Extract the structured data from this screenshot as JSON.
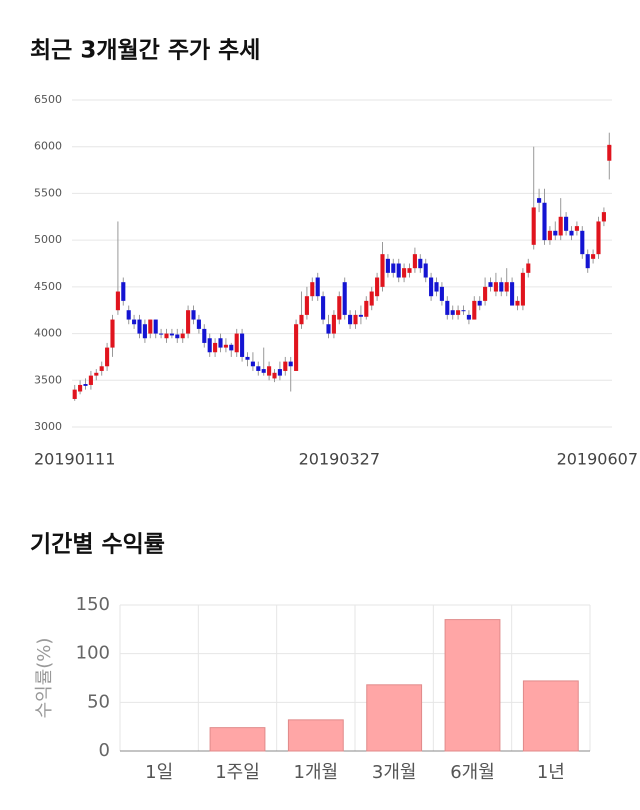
{
  "chart_data": [
    {
      "type": "candlestick",
      "title": "최근 3개월간 주가 추세",
      "categories": [
        "20190111",
        null,
        null,
        null,
        null,
        null,
        null,
        null,
        null,
        null,
        null,
        null,
        null,
        null,
        null,
        null,
        null,
        null,
        null,
        null,
        null,
        null,
        null,
        null,
        null,
        null,
        null,
        null,
        null,
        null,
        null,
        null,
        null,
        null,
        null,
        null,
        null,
        null,
        null,
        null,
        null,
        null,
        null,
        null,
        null,
        null,
        null,
        null,
        null,
        "20190327",
        null,
        null,
        null,
        null,
        null,
        null,
        null,
        null,
        null,
        null,
        null,
        null,
        null,
        null,
        null,
        null,
        null,
        null,
        null,
        null,
        null,
        null,
        null,
        null,
        null,
        null,
        null,
        null,
        null,
        null,
        null,
        null,
        null,
        null,
        null,
        null,
        null,
        null,
        null,
        null,
        null,
        null,
        null,
        null,
        null,
        null,
        null,
        null,
        null,
        "20190607"
      ],
      "open": [
        3300,
        3380,
        3460,
        3450,
        3550,
        3600,
        3650,
        3850,
        4250,
        4550,
        4250,
        4150,
        4150,
        4100,
        4000,
        4150,
        4000,
        3950,
        4000,
        3990,
        3950,
        4000,
        4250,
        4150,
        4050,
        3950,
        3800,
        3950,
        3850,
        3880,
        3800,
        4000,
        3750,
        3700,
        3650,
        3620,
        3550,
        3520,
        3620,
        3600,
        3700,
        3600,
        4100,
        4200,
        4400,
        4600,
        4400,
        4100,
        4000,
        4150,
        4550,
        4200,
        4100,
        4200,
        4180,
        4300,
        4400,
        4500,
        4800,
        4750,
        4750,
        4600,
        4650,
        4700,
        4800,
        4750,
        4600,
        4550,
        4500,
        4350,
        4250,
        4200,
        4250,
        4200,
        4150,
        4350,
        4350,
        4550,
        4450,
        4550,
        4450,
        4550,
        4300,
        4300,
        4650,
        4950,
        5450,
        5400,
        5000,
        5100,
        5050,
        5250,
        5100,
        5100,
        5100,
        4850,
        4800,
        4850,
        5200,
        5850
      ],
      "high": [
        3450,
        3500,
        3520,
        3600,
        3620,
        3700,
        3900,
        4200,
        5200,
        4600,
        4300,
        4200,
        4200,
        4150,
        4150,
        4150,
        4050,
        4050,
        4050,
        4050,
        4050,
        4300,
        4300,
        4200,
        4100,
        4000,
        3950,
        4000,
        3950,
        3900,
        4050,
        4050,
        3800,
        3800,
        3700,
        3850,
        3700,
        3620,
        3700,
        3750,
        3750,
        4150,
        4450,
        4500,
        4600,
        4650,
        4450,
        4200,
        4250,
        4450,
        4600,
        4250,
        4250,
        4300,
        4400,
        4500,
        4650,
        4980,
        4850,
        4800,
        4800,
        4750,
        4750,
        4920,
        4850,
        4800,
        4650,
        4600,
        4550,
        4400,
        4300,
        4300,
        4300,
        4250,
        4400,
        4400,
        4600,
        4600,
        4650,
        4600,
        4700,
        4600,
        4400,
        4700,
        4800,
        6000,
        5550,
        5550,
        5150,
        5200,
        5450,
        5300,
        5150,
        5200,
        5150,
        4900,
        4900,
        5250,
        5350,
        6150
      ],
      "low": [
        3280,
        3350,
        3400,
        3400,
        3500,
        3550,
        3600,
        3750,
        4200,
        4300,
        4100,
        4050,
        3950,
        3900,
        3950,
        3950,
        3950,
        3900,
        3950,
        3900,
        3900,
        3950,
        4100,
        4000,
        3850,
        3750,
        3750,
        3800,
        3800,
        3750,
        3750,
        3700,
        3650,
        3600,
        3550,
        3550,
        3500,
        3480,
        3500,
        3550,
        3380,
        3600,
        4050,
        4150,
        4350,
        4350,
        4100,
        3950,
        3950,
        4100,
        4150,
        4050,
        4050,
        4100,
        4150,
        4250,
        4350,
        4450,
        4600,
        4600,
        4550,
        4550,
        4600,
        4650,
        4650,
        4550,
        4350,
        4400,
        4300,
        4150,
        4150,
        4150,
        4200,
        4100,
        4150,
        4250,
        4300,
        4450,
        4400,
        4400,
        4400,
        4300,
        4250,
        4250,
        4600,
        4900,
        5300,
        4950,
        4950,
        5000,
        5000,
        5050,
        5000,
        5050,
        4800,
        4650,
        4750,
        4800,
        5150,
        5650
      ],
      "close": [
        3400,
        3450,
        3440,
        3550,
        3580,
        3650,
        3850,
        4150,
        4450,
        4350,
        4150,
        4100,
        4000,
        3950,
        4150,
        4000,
        3990,
        4000,
        3980,
        3950,
        4000,
        4250,
        4150,
        4050,
        3900,
        3800,
        3900,
        3850,
        3880,
        3820,
        4000,
        3750,
        3720,
        3650,
        3600,
        3580,
        3650,
        3580,
        3550,
        3700,
        3650,
        4100,
        4200,
        4400,
        4550,
        4400,
        4150,
        4000,
        4200,
        4400,
        4200,
        4100,
        4200,
        4180,
        4350,
        4450,
        4600,
        4850,
        4650,
        4650,
        4600,
        4700,
        4700,
        4850,
        4700,
        4600,
        4400,
        4450,
        4350,
        4200,
        4200,
        4250,
        4250,
        4150,
        4350,
        4300,
        4500,
        4500,
        4550,
        4450,
        4550,
        4300,
        4350,
        4650,
        4750,
        5350,
        5400,
        5000,
        5100,
        5050,
        5250,
        5100,
        5050,
        5150,
        4850,
        4700,
        4850,
        5200,
        5300,
        6020
      ],
      "up_color": "#e0141e",
      "down_color": "#1414d2",
      "ylim": [
        3000,
        6500
      ],
      "yticks": [
        3000,
        3500,
        4000,
        4500,
        5000,
        5500,
        6000,
        6500
      ],
      "grid": true
    },
    {
      "type": "bar",
      "title": "기간별 수익률",
      "y_label": "수익률(%)",
      "categories": [
        "1일",
        "1주일",
        "1개월",
        "3개월",
        "6개월",
        "1년"
      ],
      "values": [
        0,
        24,
        32,
        68,
        135,
        72
      ],
      "color": "#ffa6a6",
      "ylim": [
        0,
        150
      ],
      "yticks": [
        0,
        50,
        100,
        150
      ],
      "grid": true
    }
  ]
}
